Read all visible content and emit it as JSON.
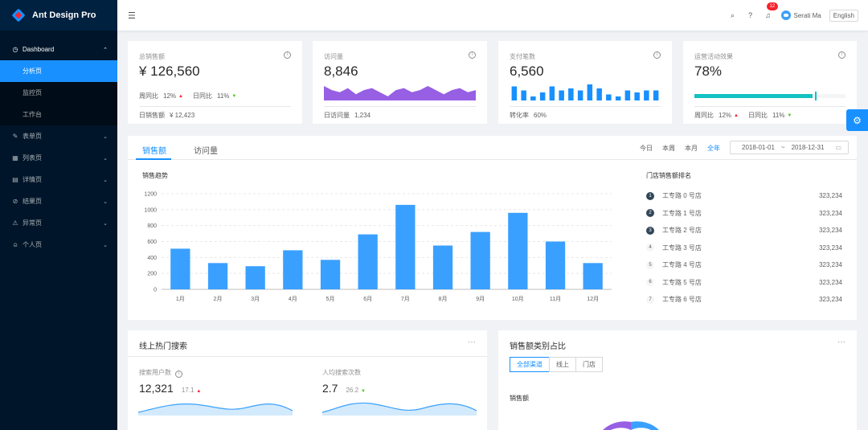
{
  "app": {
    "title": "Ant Design Pro"
  },
  "sidebar": {
    "items": [
      {
        "label": "Dashboard",
        "icon": "dashboard-icon",
        "expanded": true,
        "children": [
          {
            "label": "分析页",
            "active": true
          },
          {
            "label": "监控页",
            "active": false
          },
          {
            "label": "工作台",
            "active": false
          }
        ]
      },
      {
        "label": "表单页",
        "icon": "form-icon"
      },
      {
        "label": "列表页",
        "icon": "table-icon"
      },
      {
        "label": "详情页",
        "icon": "profile-icon"
      },
      {
        "label": "结果页",
        "icon": "check-circle-icon"
      },
      {
        "label": "异常页",
        "icon": "warning-icon"
      },
      {
        "label": "个人页",
        "icon": "user-icon"
      }
    ]
  },
  "header": {
    "notification_count": "12",
    "user_name": "Serati Ma",
    "language": "English"
  },
  "stats": [
    {
      "title": "总销售额",
      "value": "¥ 126,560",
      "wow_label": "周同比",
      "wow_value": "12%",
      "dod_label": "日同比",
      "dod_value": "11%",
      "footer_label": "日销售额",
      "footer_value": "¥ 12,423"
    },
    {
      "title": "访问量",
      "value": "8,846",
      "footer_label": "日访问量",
      "footer_value": "1,234",
      "sparkline": [
        7,
        5,
        4,
        6,
        3,
        5,
        6,
        4,
        2,
        5,
        6,
        4,
        5,
        7,
        5,
        3,
        5,
        6,
        4,
        5
      ]
    },
    {
      "title": "支付笔数",
      "value": "6,560",
      "footer_label": "转化率",
      "footer_value": "60%",
      "bars": [
        7,
        5,
        2,
        4,
        7,
        5,
        6,
        5,
        8,
        6,
        3,
        2,
        5,
        4,
        5,
        5
      ]
    },
    {
      "title": "运营活动效果",
      "value": "78%",
      "progress": 0.78,
      "target": 0.8,
      "wow_label": "周同比",
      "wow_value": "12%",
      "dod_label": "日同比",
      "dod_value": "11%"
    }
  ],
  "sales": {
    "tabs": [
      "销售额",
      "访问量"
    ],
    "ranges": [
      "今日",
      "本周",
      "本月",
      "全年"
    ],
    "active_range": "全年",
    "date_start": "2018-01-01",
    "date_sep": "~",
    "date_end": "2018-12-31",
    "chart_title": "销售趋势",
    "ranking_title": "门店销售额排名",
    "ranking": [
      {
        "rank": "1",
        "name": "工专路 0 号店",
        "value": "323,234"
      },
      {
        "rank": "2",
        "name": "工专路 1 号店",
        "value": "323,234"
      },
      {
        "rank": "3",
        "name": "工专路 2 号店",
        "value": "323,234"
      },
      {
        "rank": "4",
        "name": "工专路 3 号店",
        "value": "323,234"
      },
      {
        "rank": "5",
        "name": "工专路 4 号店",
        "value": "323,234"
      },
      {
        "rank": "6",
        "name": "工专路 5 号店",
        "value": "323,234"
      },
      {
        "rank": "7",
        "name": "工专路 6 号店",
        "value": "323,234"
      }
    ]
  },
  "chart_data": {
    "type": "bar",
    "categories": [
      "1月",
      "2月",
      "3月",
      "4月",
      "5月",
      "6月",
      "7月",
      "8月",
      "9月",
      "10月",
      "11月",
      "12月"
    ],
    "values": [
      510,
      330,
      290,
      490,
      370,
      690,
      1060,
      550,
      720,
      960,
      600,
      330
    ],
    "ylim": [
      0,
      1200
    ],
    "yticks": [
      "0",
      "200",
      "400",
      "600",
      "800",
      "1000",
      "1200"
    ],
    "title": "",
    "xlabel": "",
    "ylabel": "",
    "color": "#3aa0ff"
  },
  "search": {
    "title": "线上热门搜索",
    "more": "···",
    "users_label": "搜索用户数",
    "users_value": "12,321",
    "users_change": "17.1",
    "avg_label": "人均搜索次数",
    "avg_value": "2.7",
    "avg_change": "26.2"
  },
  "category": {
    "title": "销售额类别占比",
    "more": "···",
    "options": [
      "全部渠道",
      "线上",
      "门店"
    ],
    "active": "全部渠道",
    "sub_title": "销售额"
  },
  "colors": {
    "primary": "#1890ff",
    "sider": "#001529",
    "area": "#975fe4",
    "progress": "#13c2c2"
  }
}
